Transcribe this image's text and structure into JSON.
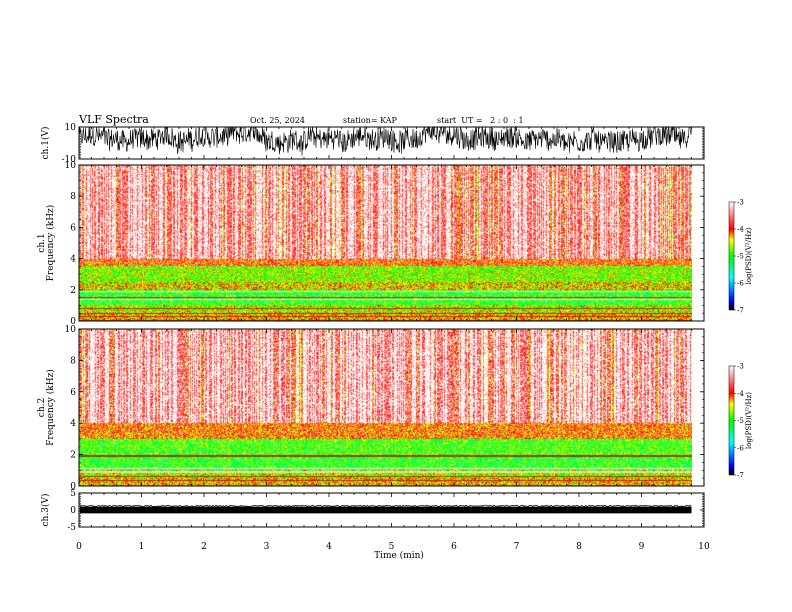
{
  "header": {
    "title": "VLF Spectra",
    "date": "Oct. 25, 2024",
    "station": "station= KAP",
    "start": "start  UT =   2 : 0  : 1"
  },
  "chart_data": [
    {
      "type": "line",
      "panel": "ch1-waveform",
      "ylabel": "ch.1(V)",
      "ylim": [
        -10,
        10
      ],
      "yticks": [
        "10",
        "-10"
      ],
      "description_free": true,
      "x_range_min": [
        0,
        9.8
      ],
      "amplitude_band": [
        -8,
        10
      ]
    },
    {
      "type": "heatmap",
      "panel": "ch1-spectrogram",
      "ylabel": "ch.1\nFrequency  (kHz)",
      "ylim": [
        0,
        10
      ],
      "yticks": [
        "0",
        "2",
        "4",
        "6",
        "8",
        "10"
      ],
      "bands": [
        {
          "from": 0.0,
          "to": 0.5,
          "level": -4.3
        },
        {
          "from": 0.5,
          "to": 1.0,
          "level": -4.6
        },
        {
          "from": 1.0,
          "to": 2.0,
          "level": -5.0
        },
        {
          "from": 2.0,
          "to": 2.5,
          "level": -4.4
        },
        {
          "from": 2.5,
          "to": 3.5,
          "level": -4.7
        },
        {
          "from": 3.5,
          "to": 4.0,
          "level": -4.0
        },
        {
          "from": 4.0,
          "to": 10.0,
          "level": -3.6
        }
      ],
      "colorbar": {
        "label": "log(PSD)(V²/Hz)",
        "ticks": [
          "-3",
          "-4",
          "-5",
          "-6",
          "-7"
        ],
        "range": [
          -7,
          -3
        ]
      }
    },
    {
      "type": "heatmap",
      "panel": "ch2-spectrogram",
      "ylabel": "ch.2\nFrequency  (kHz)",
      "ylim": [
        0,
        10
      ],
      "yticks": [
        "0",
        "2",
        "4",
        "6",
        "8",
        "10"
      ],
      "bands": [
        {
          "from": 0.0,
          "to": 0.5,
          "level": -4.3
        },
        {
          "from": 0.5,
          "to": 1.0,
          "level": -4.6
        },
        {
          "from": 1.0,
          "to": 2.0,
          "level": -5.0
        },
        {
          "from": 2.0,
          "to": 3.0,
          "level": -4.9
        },
        {
          "from": 3.0,
          "to": 4.0,
          "level": -4.1
        },
        {
          "from": 4.0,
          "to": 10.0,
          "level": -3.5
        }
      ],
      "colorbar": {
        "label": "log(PSD)(V²/Hz)",
        "ticks": [
          "-3",
          "-4",
          "-5",
          "-6",
          "-7"
        ],
        "range": [
          -7,
          -3
        ]
      }
    },
    {
      "type": "line",
      "panel": "ch3-waveform",
      "ylabel": "ch.3(V)",
      "ylim": [
        -5,
        5
      ],
      "yticks": [
        "5",
        "0",
        "-5"
      ],
      "amplitude_band": [
        -0.4,
        0.4
      ]
    }
  ],
  "xaxis": {
    "label": "Time  (min)",
    "range": [
      0,
      10
    ],
    "data_end": 9.8,
    "ticks": [
      "0",
      "1",
      "2",
      "3",
      "4",
      "5",
      "6",
      "7",
      "8",
      "9",
      "10"
    ]
  }
}
